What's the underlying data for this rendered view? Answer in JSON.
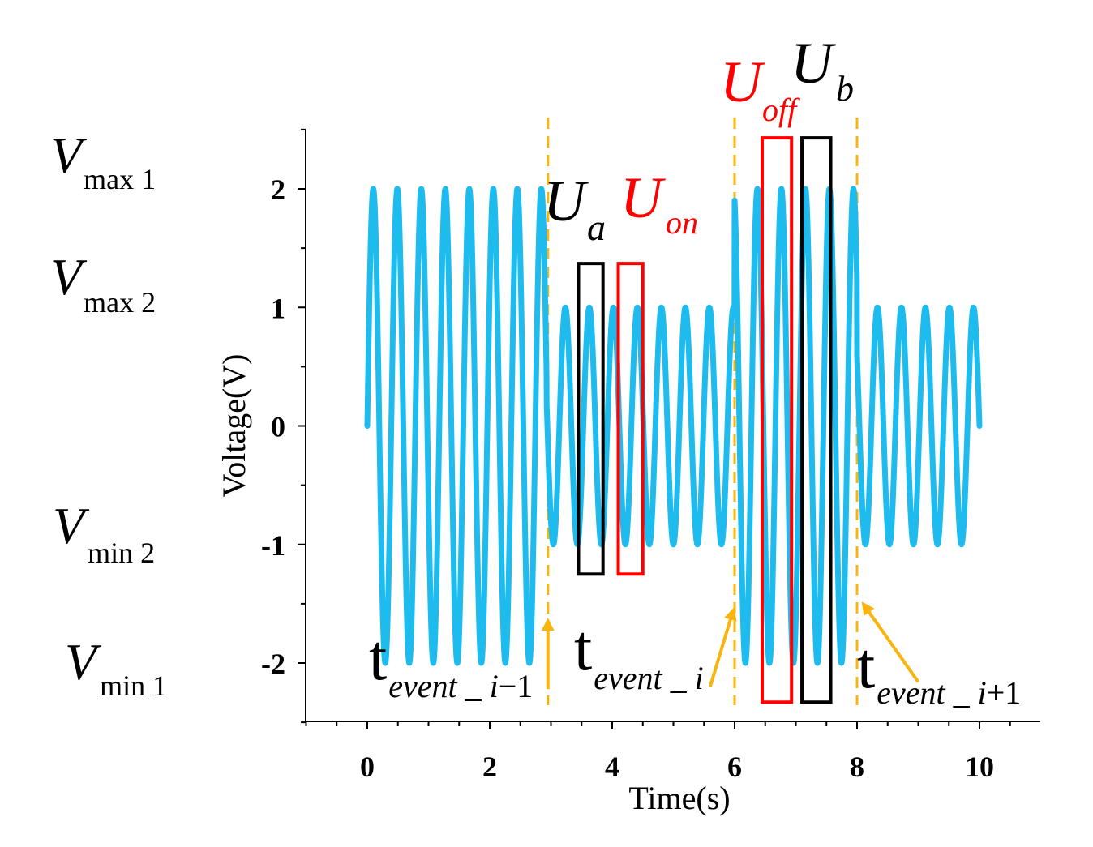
{
  "chart_data": {
    "type": "line",
    "title": "",
    "xlabel": "Time(s)",
    "ylabel": "Voltage(V)",
    "xlim": [
      -1,
      11
    ],
    "ylim": [
      -2.5,
      2.5
    ],
    "x_ticks": [
      0,
      2,
      4,
      6,
      8,
      10
    ],
    "x_tick_labels": [
      "0",
      "2",
      "4",
      "6",
      "8",
      "10"
    ],
    "y_ticks": [
      -2,
      -1,
      0,
      1,
      2
    ],
    "y_tick_labels": [
      "-2",
      "-1",
      "0",
      "1",
      "2"
    ],
    "grid": false,
    "series": [
      {
        "name": "signal",
        "color": "#1EBBEF",
        "frequency_hz": 2.55,
        "segments": [
          {
            "t_start": 0,
            "t_end": 2.93,
            "amplitude": 2
          },
          {
            "t_start": 2.93,
            "t_end": 6.0,
            "amplitude": 1
          },
          {
            "t_start": 6.0,
            "t_end": 8.0,
            "amplitude": 2
          },
          {
            "t_start": 8.0,
            "t_end": 10.0,
            "amplitude": 1
          }
        ]
      }
    ],
    "event_lines": [
      {
        "name": "event-line-i-minus-1",
        "x": 2.95
      },
      {
        "name": "event-line-i",
        "x": 6.0
      },
      {
        "name": "event-line-i-plus-1",
        "x": 8.0
      }
    ],
    "boxes": [
      {
        "name": "box-ua",
        "x0": 3.45,
        "x1": 3.85,
        "y0": -1.25,
        "y1": 1.37,
        "color": "#000000"
      },
      {
        "name": "box-uon",
        "x0": 4.1,
        "x1": 4.5,
        "y0": -1.25,
        "y1": 1.37,
        "color": "#FF0000"
      },
      {
        "name": "box-uoff",
        "x0": 6.45,
        "x1": 6.93,
        "y0": -2.33,
        "y1": 2.43,
        "color": "#FF0000"
      },
      {
        "name": "box-ub",
        "x0": 7.1,
        "x1": 7.57,
        "y0": -2.33,
        "y1": 2.43,
        "color": "#000000"
      }
    ],
    "arrows": [
      {
        "name": "arrow-event-i-minus-1",
        "from": [
          2.95,
          -2.22
        ],
        "to": [
          2.95,
          -1.64
        ]
      },
      {
        "name": "arrow-event-i",
        "from": [
          5.6,
          -2.2
        ],
        "to": [
          5.98,
          -1.55
        ]
      },
      {
        "name": "arrow-event-i-plus-1",
        "from": [
          9.0,
          -2.16
        ],
        "to": [
          8.1,
          -1.5
        ]
      }
    ],
    "event_color": "#F9B50F",
    "level_labels": [
      {
        "name": "vmax1",
        "main": "V",
        "sub": "max 1"
      },
      {
        "name": "vmax2",
        "main": "V",
        "sub": "max 2"
      },
      {
        "name": "vmin2",
        "main": "V",
        "sub": "min 2"
      },
      {
        "name": "vmin1",
        "main": "V",
        "sub": "min 1"
      }
    ],
    "annotations": [
      {
        "name": "label-ua",
        "main": "U",
        "sub": "a",
        "color": "#000000"
      },
      {
        "name": "label-uon",
        "main": "U",
        "sub": "on",
        "color": "#FF0000"
      },
      {
        "name": "label-uoff",
        "main": "U",
        "sub": "off",
        "color": "#FF0000"
      },
      {
        "name": "label-ub",
        "main": "U",
        "sub": "b",
        "color": "#000000"
      },
      {
        "name": "label-t-event-i-minus-1",
        "main": "t",
        "sub": "event _ i",
        "suffix": "−1",
        "color": "#000000"
      },
      {
        "name": "label-t-event-i",
        "main": "t",
        "sub": "event _ i",
        "suffix": "",
        "color": "#000000"
      },
      {
        "name": "label-t-event-i-plus-1",
        "main": "t",
        "sub": "event _ i",
        "suffix": "+1",
        "color": "#000000"
      }
    ]
  }
}
